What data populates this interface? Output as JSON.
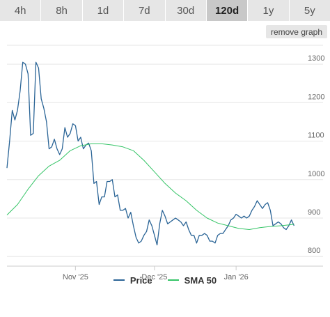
{
  "tabs": [
    {
      "label": "4h",
      "active": false
    },
    {
      "label": "8h",
      "active": false
    },
    {
      "label": "1d",
      "active": false
    },
    {
      "label": "7d",
      "active": false
    },
    {
      "label": "30d",
      "active": false
    },
    {
      "label": "120d",
      "active": true
    },
    {
      "label": "1y",
      "active": false
    },
    {
      "label": "5y",
      "active": false
    }
  ],
  "remove_graph_label": "remove graph",
  "colors": {
    "price": "#2a6496",
    "sma": "#34c466",
    "grid": "#e6e6e6",
    "axis_text": "#666666"
  },
  "chart_data": {
    "type": "line",
    "title": "",
    "xlabel": "",
    "ylabel": "",
    "x_ticks": [
      {
        "label": "Nov '25",
        "day": 26
      },
      {
        "label": "Dec '25",
        "day": 56
      },
      {
        "label": "Jan '26",
        "day": 87
      }
    ],
    "y_ticks": [
      800,
      900,
      1000,
      1100,
      1200,
      1300
    ],
    "ylim": [
      775,
      1340
    ],
    "xlim": [
      0,
      120
    ],
    "grid": true,
    "legend_position": "bottom",
    "series": [
      {
        "name": "Price",
        "points": [
          [
            0,
            1030
          ],
          [
            1,
            1100
          ],
          [
            2,
            1180
          ],
          [
            3,
            1155
          ],
          [
            4,
            1180
          ],
          [
            5,
            1230
          ],
          [
            6,
            1305
          ],
          [
            7,
            1300
          ],
          [
            8,
            1275
          ],
          [
            9,
            1115
          ],
          [
            10,
            1120
          ],
          [
            11,
            1305
          ],
          [
            12,
            1290
          ],
          [
            13,
            1210
          ],
          [
            14,
            1185
          ],
          [
            15,
            1150
          ],
          [
            16,
            1080
          ],
          [
            17,
            1085
          ],
          [
            18,
            1105
          ],
          [
            19,
            1080
          ],
          [
            20,
            1065
          ],
          [
            21,
            1080
          ],
          [
            22,
            1135
          ],
          [
            23,
            1110
          ],
          [
            24,
            1120
          ],
          [
            25,
            1145
          ],
          [
            26,
            1140
          ],
          [
            27,
            1100
          ],
          [
            28,
            1110
          ],
          [
            29,
            1080
          ],
          [
            30,
            1090
          ],
          [
            31,
            1095
          ],
          [
            32,
            1075
          ],
          [
            33,
            990
          ],
          [
            34,
            995
          ],
          [
            35,
            935
          ],
          [
            36,
            955
          ],
          [
            37,
            955
          ],
          [
            38,
            995
          ],
          [
            39,
            995
          ],
          [
            40,
            1000
          ],
          [
            41,
            955
          ],
          [
            42,
            960
          ],
          [
            43,
            920
          ],
          [
            44,
            920
          ],
          [
            45,
            925
          ],
          [
            46,
            900
          ],
          [
            47,
            915
          ],
          [
            48,
            880
          ],
          [
            49,
            850
          ],
          [
            50,
            835
          ],
          [
            51,
            840
          ],
          [
            52,
            855
          ],
          [
            53,
            865
          ],
          [
            54,
            895
          ],
          [
            55,
            880
          ],
          [
            56,
            855
          ],
          [
            57,
            830
          ],
          [
            58,
            885
          ],
          [
            59,
            920
          ],
          [
            60,
            905
          ],
          [
            61,
            885
          ],
          [
            62,
            890
          ],
          [
            63,
            895
          ],
          [
            64,
            900
          ],
          [
            65,
            895
          ],
          [
            66,
            890
          ],
          [
            67,
            880
          ],
          [
            68,
            890
          ],
          [
            69,
            870
          ],
          [
            70,
            855
          ],
          [
            71,
            855
          ],
          [
            72,
            835
          ],
          [
            73,
            855
          ],
          [
            74,
            855
          ],
          [
            75,
            860
          ],
          [
            76,
            855
          ],
          [
            77,
            840
          ],
          [
            78,
            840
          ],
          [
            79,
            835
          ],
          [
            80,
            855
          ],
          [
            81,
            860
          ],
          [
            82,
            860
          ],
          [
            83,
            870
          ],
          [
            84,
            880
          ],
          [
            85,
            895
          ],
          [
            86,
            900
          ],
          [
            87,
            910
          ],
          [
            88,
            905
          ],
          [
            89,
            900
          ],
          [
            90,
            905
          ],
          [
            91,
            900
          ],
          [
            92,
            905
          ],
          [
            93,
            920
          ],
          [
            94,
            930
          ],
          [
            95,
            945
          ],
          [
            96,
            935
          ],
          [
            97,
            925
          ],
          [
            98,
            935
          ],
          [
            99,
            940
          ],
          [
            100,
            920
          ],
          [
            101,
            880
          ],
          [
            102,
            885
          ],
          [
            103,
            890
          ],
          [
            104,
            885
          ],
          [
            105,
            875
          ],
          [
            106,
            870
          ],
          [
            107,
            880
          ],
          [
            108,
            895
          ],
          [
            109,
            880
          ]
        ]
      },
      {
        "name": "SMA 50",
        "points": [
          [
            0,
            908
          ],
          [
            4,
            935
          ],
          [
            8,
            975
          ],
          [
            12,
            1010
          ],
          [
            16,
            1035
          ],
          [
            20,
            1050
          ],
          [
            24,
            1075
          ],
          [
            28,
            1088
          ],
          [
            32,
            1093
          ],
          [
            36,
            1093
          ],
          [
            40,
            1090
          ],
          [
            44,
            1085
          ],
          [
            48,
            1075
          ],
          [
            52,
            1050
          ],
          [
            56,
            1020
          ],
          [
            60,
            990
          ],
          [
            64,
            965
          ],
          [
            68,
            945
          ],
          [
            72,
            920
          ],
          [
            76,
            900
          ],
          [
            80,
            887
          ],
          [
            84,
            880
          ],
          [
            88,
            873
          ],
          [
            92,
            870
          ],
          [
            96,
            875
          ],
          [
            100,
            878
          ],
          [
            104,
            880
          ],
          [
            108,
            883
          ],
          [
            109,
            884
          ]
        ]
      }
    ]
  }
}
